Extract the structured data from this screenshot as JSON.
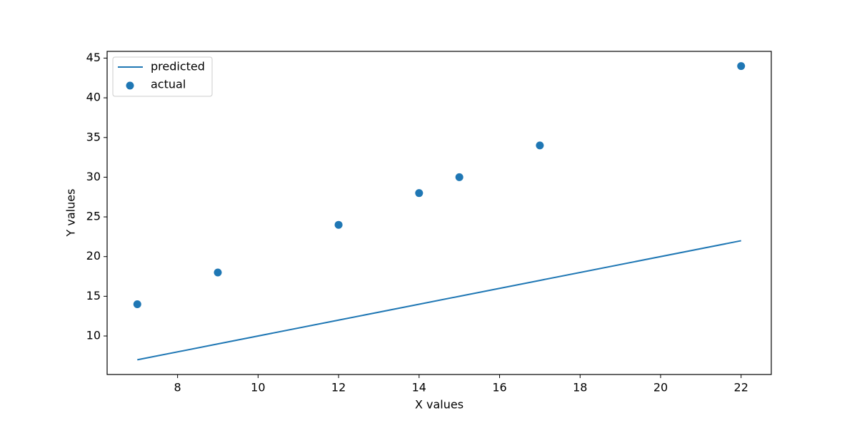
{
  "chart_data": {
    "type": "scatter",
    "xlabel": "X values",
    "ylabel": "Y values",
    "series": [
      {
        "name": "predicted",
        "type": "line",
        "color": "#1f77b4",
        "x": [
          7,
          9,
          12,
          14,
          15,
          17,
          22
        ],
        "values": [
          7,
          9,
          12,
          14,
          15,
          17,
          22
        ]
      },
      {
        "name": "actual",
        "type": "scatter",
        "color": "#1f77b4",
        "x": [
          7,
          9,
          12,
          14,
          15,
          17,
          22
        ],
        "values": [
          14,
          18,
          24,
          28,
          30,
          34,
          44
        ]
      }
    ],
    "xlim": [
      6.25,
      22.75
    ],
    "xticks": [
      8,
      10,
      12,
      14,
      16,
      18,
      20,
      22
    ],
    "ylim": [
      5.15,
      45.85
    ],
    "yticks": [
      10,
      15,
      20,
      25,
      30,
      35,
      40,
      45
    ],
    "legend": "upper left",
    "grid": false
  }
}
